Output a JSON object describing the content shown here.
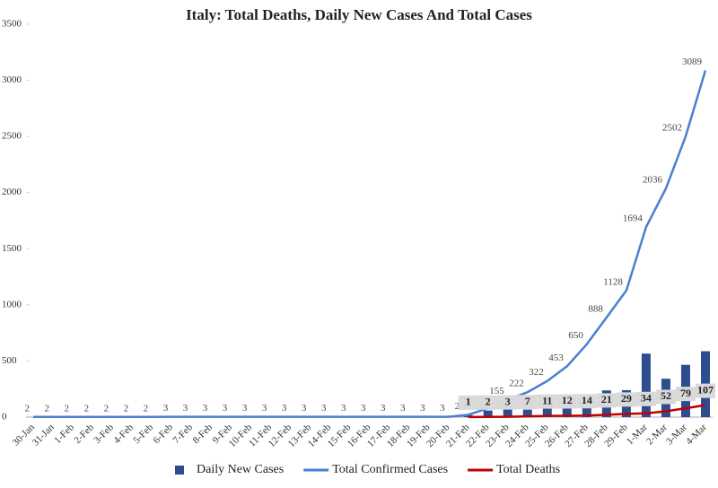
{
  "chart_data": {
    "type": "combo",
    "title": "Italy: Total Deaths, Daily New Cases And Total Cases",
    "categories": [
      "30-Jan",
      "31-Jan",
      "1-Feb",
      "2-Feb",
      "3-Feb",
      "4-Feb",
      "5-Feb",
      "6-Feb",
      "7-Feb",
      "8-Feb",
      "9-Feb",
      "10-Feb",
      "11-Feb",
      "12-Feb",
      "13-Feb",
      "14-Feb",
      "15-Feb",
      "16-Feb",
      "17-Feb",
      "18-Feb",
      "19-Feb",
      "20-Feb",
      "21-Feb",
      "22-Feb",
      "23-Feb",
      "24-Feb",
      "25-Feb",
      "26-Feb",
      "27-Feb",
      "28-Feb",
      "29-Feb",
      "1-Mar",
      "2-Mar",
      "3-Mar",
      "4-Mar"
    ],
    "series": [
      {
        "name": "Daily New Cases",
        "kind": "bar",
        "color": "#2e4d8f",
        "values": [
          0,
          0,
          0,
          0,
          0,
          0,
          0,
          1,
          0,
          0,
          0,
          0,
          0,
          0,
          0,
          0,
          0,
          0,
          0,
          0,
          0,
          0,
          17,
          59,
          76,
          67,
          100,
          131,
          197,
          238,
          240,
          566,
          342,
          466,
          587
        ]
      },
      {
        "name": "Total Confirmed Cases",
        "kind": "line",
        "color": "#4a7fd0",
        "values": [
          2,
          2,
          2,
          2,
          2,
          2,
          2,
          3,
          3,
          3,
          3,
          3,
          3,
          3,
          3,
          3,
          3,
          3,
          3,
          3,
          3,
          3,
          20,
          79,
          155,
          222,
          322,
          453,
          650,
          888,
          1128,
          1694,
          2036,
          2502,
          3089
        ]
      },
      {
        "name": "Total Deaths",
        "kind": "line",
        "color": "#c00000",
        "boxed": true,
        "values": [
          null,
          null,
          null,
          null,
          null,
          null,
          null,
          null,
          null,
          null,
          null,
          null,
          null,
          null,
          null,
          null,
          null,
          null,
          null,
          null,
          null,
          null,
          1,
          2,
          3,
          7,
          11,
          12,
          14,
          21,
          29,
          34,
          52,
          79,
          107
        ]
      }
    ],
    "ylim": [
      0,
      3500
    ],
    "yticks": [
      0,
      500,
      1000,
      1500,
      2000,
      2500,
      3000,
      3500
    ]
  }
}
